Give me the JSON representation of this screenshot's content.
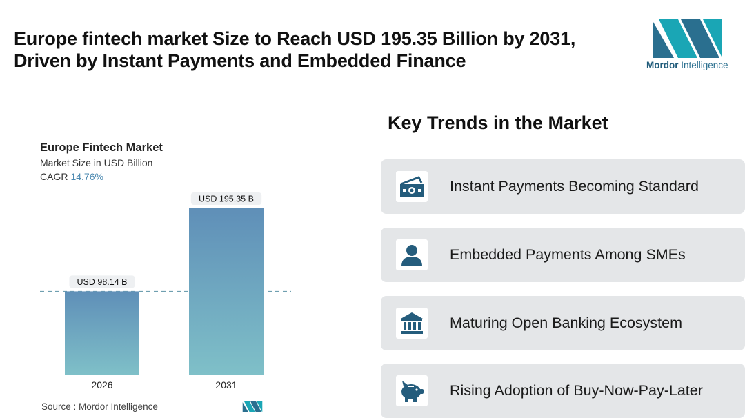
{
  "headline": {
    "line1": "Europe fintech market Size to Reach USD 195.35 Billion by 2031,",
    "line2": "Driven by Instant Payments and Embedded Finance"
  },
  "logo": {
    "brand_bold": "Mordor",
    "brand_rest": " Intelligence"
  },
  "chart_data": {
    "type": "bar",
    "title": "Europe Fintech Market",
    "subtitle": "Market Size in USD Billion",
    "cagr_label": "CAGR",
    "cagr_value": "14.76%",
    "categories": [
      "2026",
      "2031"
    ],
    "values": [
      98.14,
      195.35
    ],
    "data_labels": [
      "USD 98.14 B",
      "USD 195.35 B"
    ],
    "ylim": [
      0,
      195.35
    ],
    "grid": false,
    "reference_line": "dashed line at first bar value",
    "colors": {
      "bar_top": "#5f8fb8",
      "bar_bottom": "#7fc0c8",
      "label_bg": "#eef0f2"
    }
  },
  "source": {
    "text": "Source :  Mordor Intelligence"
  },
  "trends": {
    "title": "Key Trends in the Market",
    "items": [
      {
        "label": "Instant Payments Becoming Standard",
        "icon": "cash-icon"
      },
      {
        "label": "Embedded Payments Among SMEs",
        "icon": "person-icon"
      },
      {
        "label": "Maturing Open Banking Ecosystem",
        "icon": "bank-icon"
      },
      {
        "label": "Rising Adoption of Buy-Now-Pay-Later",
        "icon": "piggy-bank-icon"
      }
    ]
  },
  "colors": {
    "icon": "#245c7c",
    "card_bg": "#e4e6e8",
    "accent": "#4a88b0"
  }
}
